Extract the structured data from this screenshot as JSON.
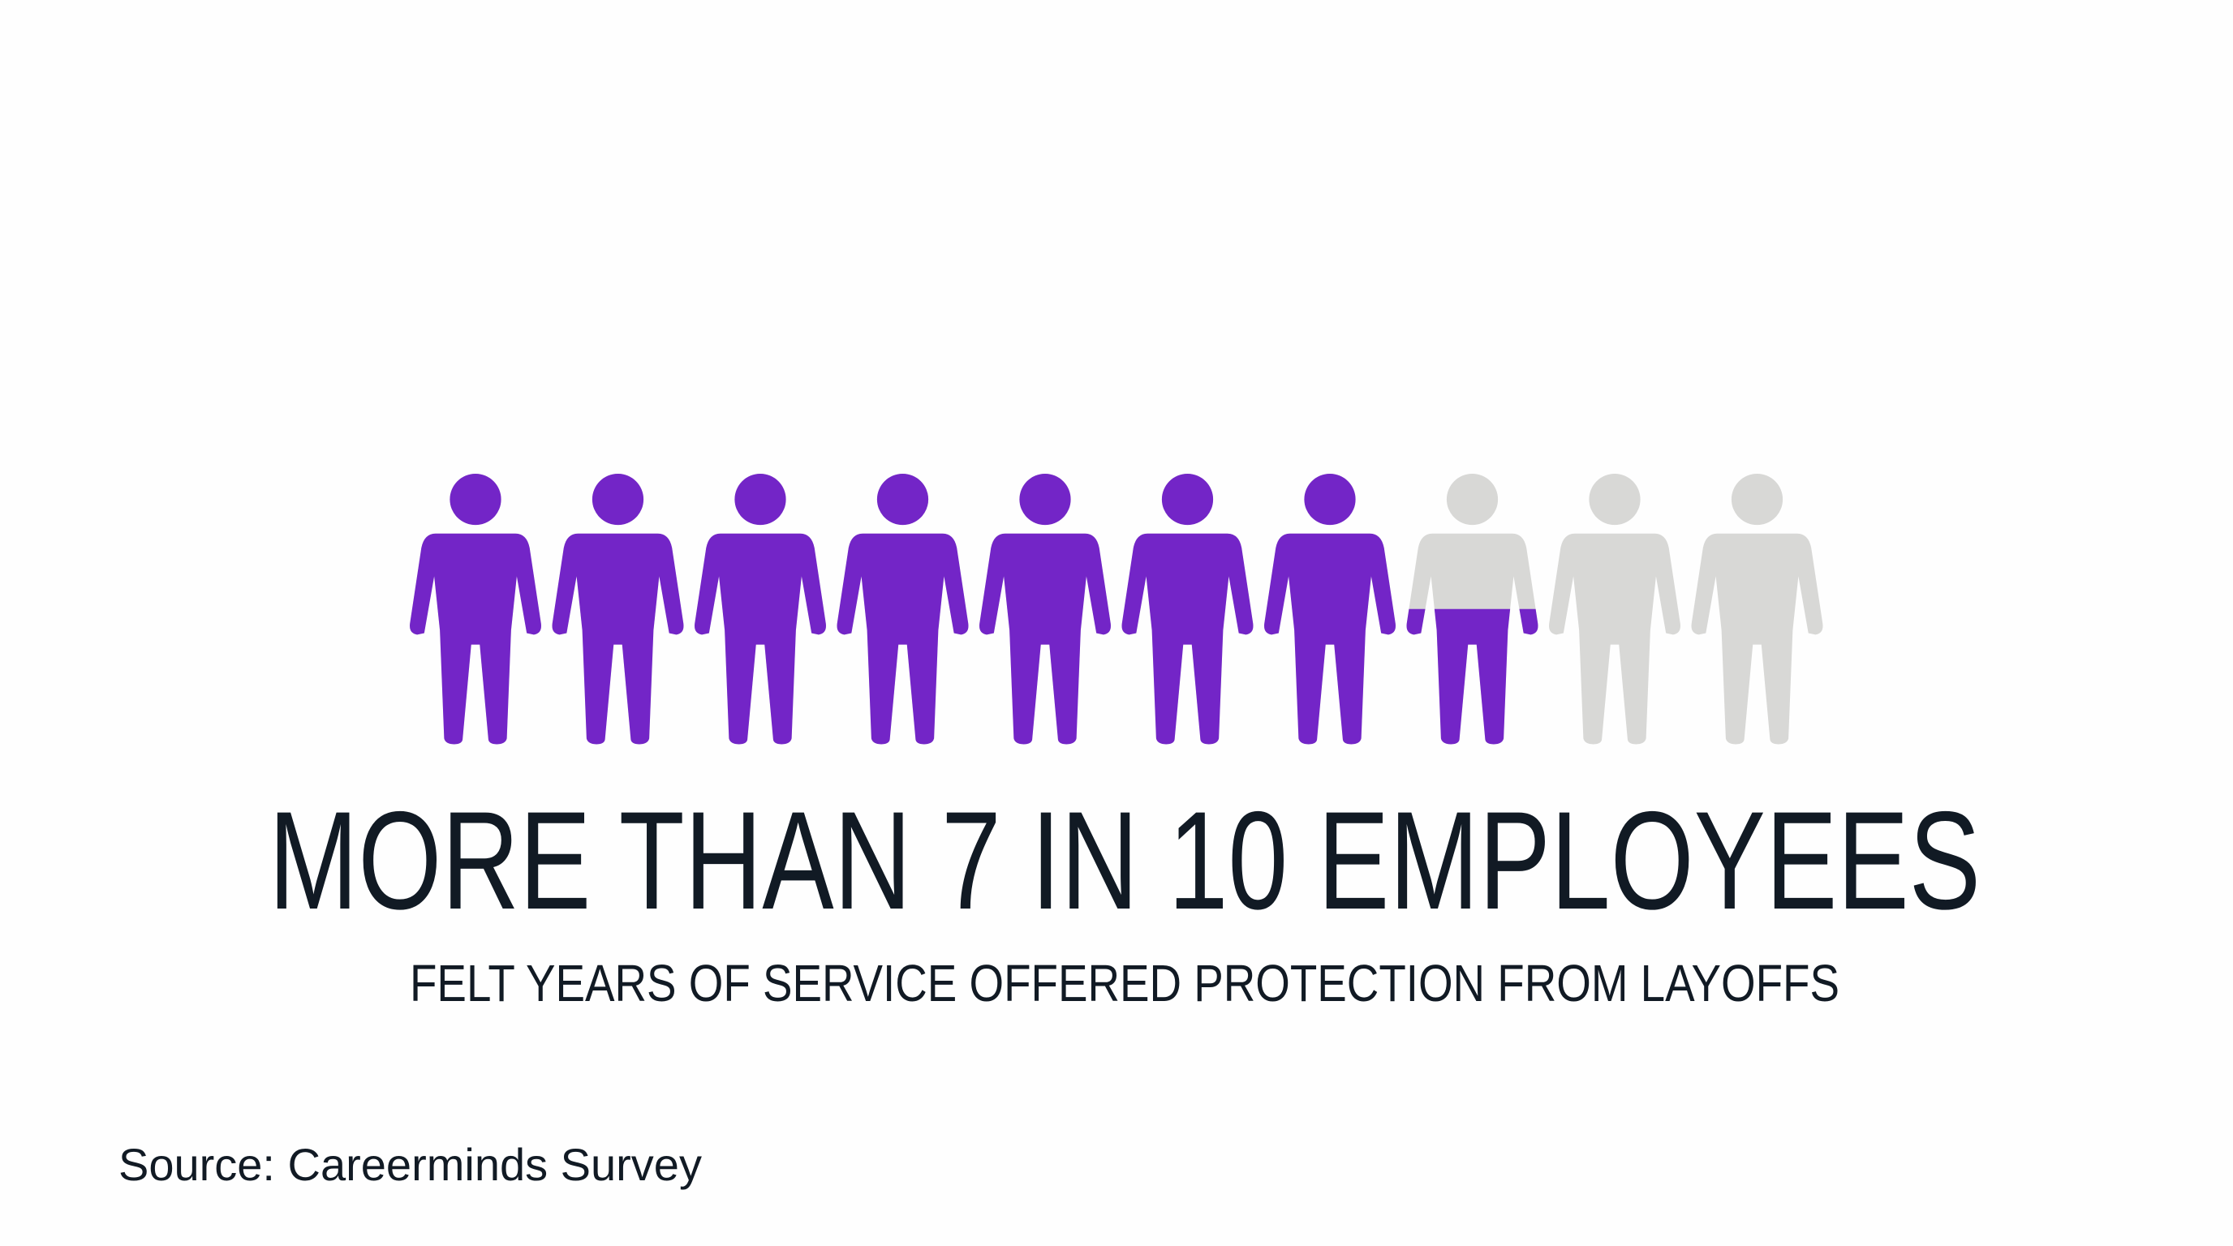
{
  "chart_data": {
    "type": "pictograph",
    "title": "MORE THAN 7 IN 10 EMPLOYEES",
    "subtitle": "FELT YEARS OF SERVICE OFFERED PROTECTION FROM LAYOFFS",
    "source": "Source: Careerminds Survey",
    "value": 7.5,
    "total": 10,
    "color": "#7325c7",
    "empty_color": "#d8d8d6"
  }
}
